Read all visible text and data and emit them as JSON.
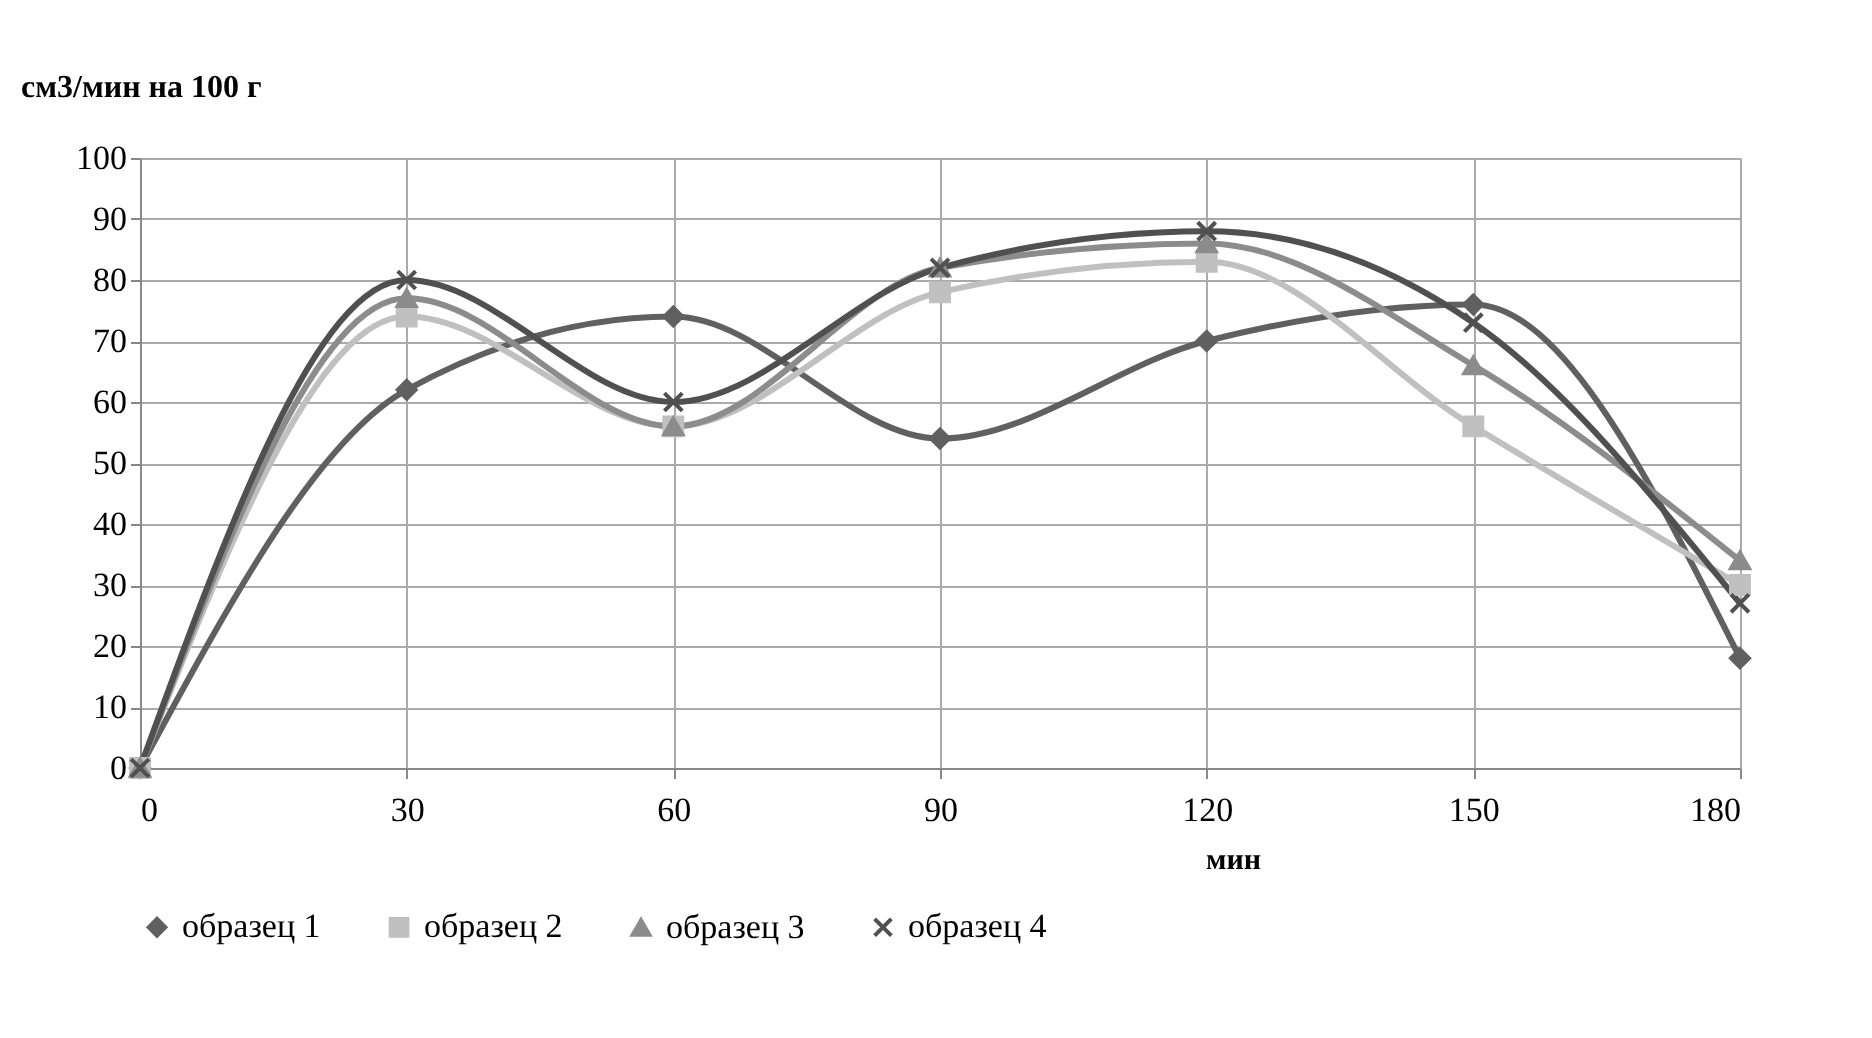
{
  "chart_data": {
    "type": "line",
    "ylabel": "см3/мин на 100 г",
    "xlabel": "мин",
    "x": [
      0,
      30,
      60,
      90,
      120,
      150,
      180
    ],
    "series": [
      {
        "name": "образец 1",
        "color": "#606060",
        "marker": "diamond",
        "values": [
          0,
          62,
          74,
          54,
          70,
          76,
          18
        ]
      },
      {
        "name": "образец 2",
        "color": "#c0c0c0",
        "marker": "square",
        "values": [
          0,
          74,
          56,
          78,
          83,
          56,
          30
        ]
      },
      {
        "name": "образец 3",
        "color": "#8c8c8c",
        "marker": "triangle",
        "values": [
          0,
          77,
          56,
          82,
          86,
          66,
          34
        ]
      },
      {
        "name": "образец 4",
        "color": "#505050",
        "marker": "cross",
        "values": [
          0,
          80,
          60,
          82,
          88,
          73,
          27
        ]
      }
    ],
    "xlim": [
      0,
      180
    ],
    "xticks": [
      0,
      30,
      60,
      90,
      120,
      150,
      180
    ],
    "ylim": [
      0,
      100
    ],
    "yticks": [
      0,
      10,
      20,
      30,
      40,
      50,
      60,
      70,
      80,
      90,
      100
    ],
    "grid": true,
    "legend": "bottom",
    "line_style": "solid"
  }
}
